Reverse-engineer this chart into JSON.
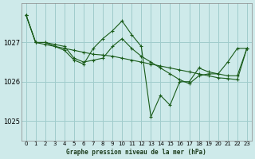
{
  "background_color": "#ceeaea",
  "grid_color": "#a0cccc",
  "line_color": "#1a5c1a",
  "title": "Graphe pression niveau de la mer (hPa)",
  "xlim": [
    -0.5,
    23.5
  ],
  "ylim": [
    1024.5,
    1028.0
  ],
  "yticks": [
    1025,
    1026,
    1027
  ],
  "xticks": [
    0,
    1,
    2,
    3,
    4,
    5,
    6,
    7,
    8,
    9,
    10,
    11,
    12,
    13,
    14,
    15,
    16,
    17,
    18,
    19,
    20,
    21,
    22,
    23
  ],
  "series": [
    {
      "x": [
        0,
        1,
        2,
        3,
        4,
        5,
        6,
        7,
        8,
        9,
        10,
        11,
        12,
        13,
        14,
        15,
        16,
        17,
        18,
        19,
        20,
        21,
        22,
        23
      ],
      "y": [
        1027.7,
        1027.0,
        1027.0,
        1026.9,
        1026.8,
        1026.55,
        1026.45,
        1026.85,
        1027.1,
        1027.3,
        1027.55,
        1027.2,
        1026.9,
        1025.1,
        1025.65,
        1025.4,
        1026.0,
        1026.0,
        1026.35,
        1026.25,
        1026.2,
        1026.5,
        1026.85,
        1026.85
      ],
      "style": "solid"
    },
    {
      "x": [
        0,
        1,
        2,
        3,
        4,
        5,
        6,
        7,
        8,
        9,
        10,
        11,
        12,
        13,
        14,
        15,
        16,
        17,
        18,
        19,
        20,
        21,
        22,
        23
      ],
      "y": [
        1027.7,
        1027.0,
        1026.95,
        1026.9,
        1026.85,
        1026.8,
        1026.75,
        1026.7,
        1026.68,
        1026.65,
        1026.6,
        1026.55,
        1026.5,
        1026.45,
        1026.4,
        1026.35,
        1026.3,
        1026.25,
        1026.2,
        1026.15,
        1026.1,
        1026.08,
        1026.05,
        1026.85
      ],
      "style": "solid"
    },
    {
      "x": [
        0,
        1,
        2,
        3,
        4,
        5,
        6,
        7,
        8,
        9,
        10,
        11,
        12,
        13,
        14,
        15,
        16,
        17,
        18,
        19,
        20,
        21,
        22,
        23
      ],
      "y": [
        1027.7,
        1027.0,
        1027.0,
        1026.95,
        1026.9,
        1026.6,
        1026.5,
        1026.55,
        1026.6,
        1026.9,
        1027.1,
        1026.85,
        1026.65,
        1026.5,
        1026.35,
        1026.2,
        1026.05,
        1025.95,
        1026.15,
        1026.2,
        1026.2,
        1026.15,
        1026.15,
        1026.85
      ],
      "style": "solid"
    }
  ]
}
